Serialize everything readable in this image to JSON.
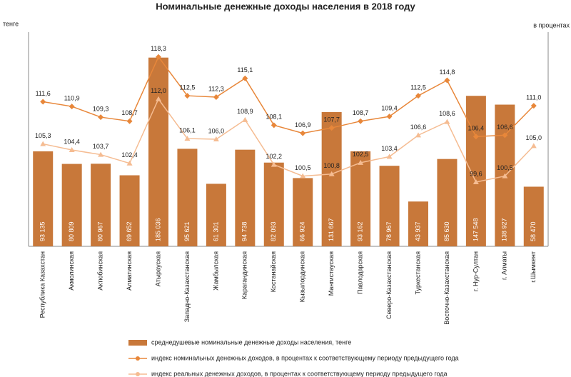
{
  "chart_data": {
    "type": "bar_line",
    "title": "Номинальные денежные доходы населения в 2018 году",
    "y_label": "тенге",
    "y2_label": "в процентах",
    "categories": [
      "Республика Казахстан",
      "Акмолинская",
      "Актюбинская",
      "Алматинская",
      "Атырауская",
      "Западно-Казахстанская",
      "Жамбылская",
      "Карагандинская",
      "Костанайская",
      "Кызылординская",
      "Мангистауская",
      "Павлодарская",
      "Северо-Казахстанская",
      "Туркестанская",
      "Восточно-Казахстанская",
      "г. Нур-Султан",
      "г. Алматы",
      "г.Шымкент"
    ],
    "ylim": [
      0,
      210000
    ],
    "y2lim": [
      90,
      122
    ],
    "series": [
      {
        "name": "среднедушевые номинальные денежные доходы населения, тенге",
        "type": "bar",
        "color": "#c8783a",
        "values": [
          93135,
          80809,
          80967,
          69652,
          185036,
          95621,
          61301,
          94738,
          82093,
          66924,
          131667,
          93162,
          78967,
          43937,
          85630,
          147548,
          138927,
          58470
        ],
        "value_labels": [
          "93 135",
          "80 809",
          "80 967",
          "69 652",
          "185 036",
          "95 621",
          "61 301",
          "94 738",
          "82 093",
          "66 924",
          "131 667",
          "93 162",
          "78 967",
          "43 937",
          "85 630",
          "147 548",
          "138 927",
          "58 470"
        ]
      },
      {
        "name": "индекс номинальных денежных доходов, в процентах к соответствующему периоду предыдущего года",
        "type": "line",
        "axis": "y2",
        "color": "#e8873a",
        "marker": "diamond",
        "values": [
          111.6,
          110.9,
          109.3,
          108.7,
          118.3,
          112.5,
          112.3,
          115.1,
          108.1,
          106.9,
          107.7,
          108.7,
          109.4,
          112.5,
          114.8,
          106.4,
          106.6,
          111.0
        ],
        "value_labels": [
          "111,6",
          "110,9",
          "109,3",
          "108,7",
          "118,3",
          "112,5",
          "112,3",
          "115,1",
          "108,1",
          "106,9",
          "107,7",
          "108,7",
          "109,4",
          "112,5",
          "114,8",
          "106,4",
          "106,6",
          "111,0"
        ]
      },
      {
        "name": "индекс реальных денежных доходов, в процентах к соответствующему периоду предыдущего года",
        "type": "line",
        "axis": "y2",
        "color": "#f5bc92",
        "marker": "triangle",
        "values": [
          105.3,
          104.4,
          103.7,
          102.4,
          112.0,
          106.1,
          106.0,
          108.9,
          102.2,
          100.5,
          100.8,
          102.5,
          103.4,
          106.6,
          108.6,
          99.6,
          100.5,
          105.0
        ],
        "value_labels": [
          "105,3",
          "104,4",
          "103,7",
          "102,4",
          "112,0",
          "106,1",
          "106,0",
          "108,9",
          "102,2",
          "100,5",
          "100,8",
          "102,5",
          "103,4",
          "106,6",
          "108,6",
          "99,6",
          "100,5",
          "105,0"
        ]
      }
    ]
  }
}
